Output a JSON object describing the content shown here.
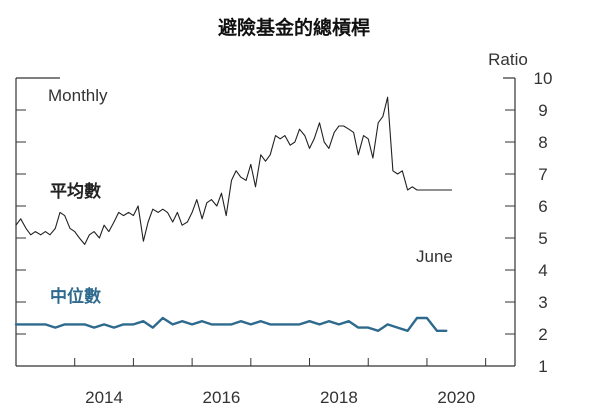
{
  "chart_data": {
    "type": "line",
    "title": "避險基金的總槓桿",
    "ylabel": "Ratio",
    "frequency_label": "Monthly",
    "end_label": "June",
    "x_ticks": [
      "2014",
      "2016",
      "2018",
      "2020"
    ],
    "y_ticks": [
      1,
      2,
      3,
      4,
      5,
      6,
      7,
      8,
      9,
      10
    ],
    "xlim": [
      2013.0,
      2021.5
    ],
    "ylim": [
      1,
      10
    ],
    "grid": false,
    "colors": {
      "series_mean": "#222222",
      "series_median": "#2e6a8e",
      "axis": "#333333"
    },
    "series": [
      {
        "name": "平均數",
        "x": [
          2013.0,
          2013.08,
          2013.17,
          2013.25,
          2013.33,
          2013.42,
          2013.5,
          2013.58,
          2013.67,
          2013.75,
          2013.83,
          2013.92,
          2014.0,
          2014.08,
          2014.17,
          2014.25,
          2014.33,
          2014.42,
          2014.5,
          2014.58,
          2014.67,
          2014.75,
          2014.83,
          2014.92,
          2015.0,
          2015.08,
          2015.17,
          2015.25,
          2015.33,
          2015.42,
          2015.5,
          2015.58,
          2015.67,
          2015.75,
          2015.83,
          2015.92,
          2016.0,
          2016.08,
          2016.17,
          2016.25,
          2016.33,
          2016.42,
          2016.5,
          2016.58,
          2016.67,
          2016.75,
          2016.83,
          2016.92,
          2017.0,
          2017.08,
          2017.17,
          2017.25,
          2017.33,
          2017.42,
          2017.5,
          2017.58,
          2017.67,
          2017.75,
          2017.83,
          2017.92,
          2018.0,
          2018.08,
          2018.17,
          2018.25,
          2018.33,
          2018.42,
          2018.5,
          2018.58,
          2018.67,
          2018.75,
          2018.83,
          2018.92,
          2019.0,
          2019.08,
          2019.17,
          2019.25,
          2019.33,
          2019.42,
          2019.5,
          2019.58,
          2019.67,
          2019.75,
          2019.83,
          2019.92,
          2020.0,
          2020.08,
          2020.17,
          2020.25,
          2020.33,
          2020.42
        ],
        "values": [
          5.4,
          5.6,
          5.3,
          5.1,
          5.2,
          5.1,
          5.2,
          5.1,
          5.3,
          5.8,
          5.7,
          5.3,
          5.2,
          5.0,
          4.8,
          5.1,
          5.2,
          5.0,
          5.4,
          5.2,
          5.5,
          5.8,
          5.7,
          5.8,
          5.7,
          6.0,
          4.9,
          5.5,
          5.9,
          5.8,
          5.9,
          5.8,
          5.5,
          5.8,
          5.4,
          5.5,
          5.8,
          6.2,
          5.6,
          6.1,
          6.2,
          6.0,
          6.4,
          5.7,
          6.8,
          7.1,
          6.9,
          6.8,
          7.3,
          6.6,
          7.6,
          7.4,
          7.6,
          8.2,
          8.1,
          8.2,
          7.9,
          8.0,
          8.4,
          8.2,
          7.8,
          8.1,
          8.6,
          8.0,
          7.8,
          8.3,
          8.5,
          8.5,
          8.4,
          8.3,
          7.6,
          8.2,
          8.1,
          7.5,
          8.6,
          8.8,
          9.4,
          7.1,
          7.0,
          7.1,
          6.5,
          6.6,
          6.5,
          6.5,
          6.5,
          6.5,
          6.5,
          6.5,
          6.5,
          6.5
        ]
      },
      {
        "name": "中位數",
        "x": [
          2013.0,
          2013.17,
          2013.33,
          2013.5,
          2013.67,
          2013.83,
          2014.0,
          2014.17,
          2014.33,
          2014.5,
          2014.67,
          2014.83,
          2015.0,
          2015.17,
          2015.33,
          2015.5,
          2015.67,
          2015.83,
          2016.0,
          2016.17,
          2016.33,
          2016.5,
          2016.67,
          2016.83,
          2017.0,
          2017.17,
          2017.33,
          2017.5,
          2017.67,
          2017.83,
          2018.0,
          2018.17,
          2018.33,
          2018.5,
          2018.67,
          2018.83,
          2019.0,
          2019.17,
          2019.33,
          2019.5,
          2019.67,
          2019.83,
          2020.0,
          2020.17,
          2020.33
        ],
        "values": [
          2.3,
          2.3,
          2.3,
          2.3,
          2.2,
          2.3,
          2.3,
          2.3,
          2.2,
          2.3,
          2.2,
          2.3,
          2.3,
          2.4,
          2.2,
          2.5,
          2.3,
          2.4,
          2.3,
          2.4,
          2.3,
          2.3,
          2.3,
          2.4,
          2.3,
          2.4,
          2.3,
          2.3,
          2.3,
          2.3,
          2.4,
          2.3,
          2.4,
          2.3,
          2.4,
          2.2,
          2.2,
          2.1,
          2.3,
          2.2,
          2.1,
          2.5,
          2.5,
          2.1,
          2.1
        ]
      }
    ]
  }
}
